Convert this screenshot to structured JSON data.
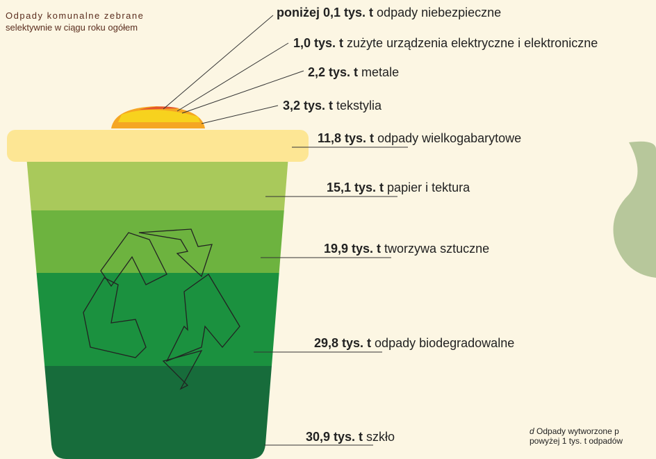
{
  "subtitle": [
    "Odpady komunalne zebrane",
    "selektywnie w ciągu roku ogółem"
  ],
  "items": [
    {
      "amount": "poniżej 0,1 tys. t",
      "text": " odpady niebezpieczne"
    },
    {
      "amount": "1,0 tys. t",
      "text": " zużyte urządzenia elektryczne i elektroniczne"
    },
    {
      "amount": "2,2 tys. t",
      "text": " metale"
    },
    {
      "amount": "3,2 tys. t",
      "text": " tekstylia"
    },
    {
      "amount": "11,8 tys. t",
      "text": " odpady wielkogabarytowe"
    },
    {
      "amount": "15,1 tys. t",
      "text": " papier i tektura"
    },
    {
      "amount": "19,9 tys. t",
      "text": " tworzywa sztuczne"
    },
    {
      "amount": "29,8 tys. t",
      "text": " odpady biodegradowalne"
    },
    {
      "amount": "30,9 tys. t",
      "text": " szkło"
    }
  ],
  "footnote": {
    "marker": "d",
    "lines": [
      " Odpady wytworzone p",
      "powyżej 1 tys. t odpadów"
    ]
  }
}
